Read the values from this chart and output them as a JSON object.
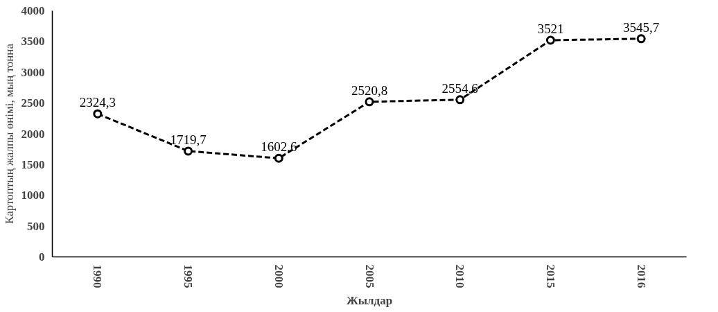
{
  "chart_data": {
    "type": "line",
    "xlabel": "Жылдар",
    "ylabel": "Картоптың жалпы өнімі, мың тонна",
    "categories": [
      "1990",
      "1995",
      "2000",
      "2005",
      "2010",
      "2015",
      "2016"
    ],
    "series": [
      {
        "color": "#000000",
        "values": [
          2324.3,
          1719.7,
          1602.6,
          2520.8,
          2554.6,
          3521,
          3545.7
        ],
        "value_labels": [
          "2324,3",
          "1719,7",
          "1602,6",
          "2520,8",
          "2554,6",
          "3521",
          "3545,7"
        ]
      }
    ],
    "ylim": [
      0,
      4000
    ],
    "yticks": [
      0,
      500,
      1000,
      1500,
      2000,
      2500,
      3000,
      3500,
      4000
    ],
    "grid": false,
    "marker": "circle",
    "line_style": "dashed"
  }
}
